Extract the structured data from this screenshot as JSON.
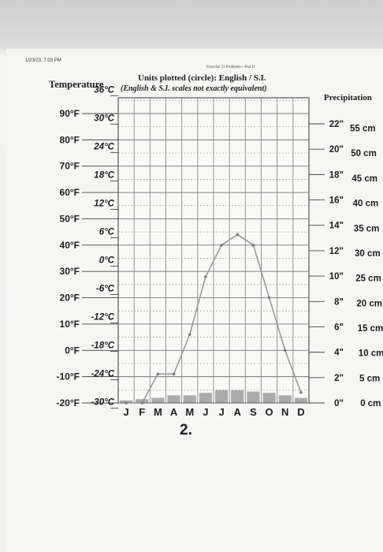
{
  "header": {
    "stamp": "1/23/23, 7:03 PM",
    "exercise": "Exercise 23 Problems—Part II",
    "units_plotted": "Units plotted (circle): English / S.I.",
    "temperature_label": "Temperature",
    "scales_note": "(English & S.I. scales not exactly equivalent)",
    "precipitation_label": "Precipitation",
    "figure_number": "2."
  },
  "chart_data": {
    "type": "line",
    "categories": [
      "J",
      "F",
      "M",
      "A",
      "M",
      "J",
      "J",
      "A",
      "S",
      "O",
      "N",
      "D"
    ],
    "y_left_f": {
      "ticks": [
        "90°F",
        "80°F",
        "70°F",
        "60°F",
        "50°F",
        "40°F",
        "30°F",
        "20°F",
        "10°F",
        "0°F",
        "-10°F",
        "-20°F"
      ],
      "values": [
        90,
        80,
        70,
        60,
        50,
        40,
        30,
        20,
        10,
        0,
        -10,
        -20
      ],
      "ylim": [
        -20,
        90
      ]
    },
    "y_left_c": {
      "ticks": [
        "36°C",
        "30°C",
        "24°C",
        "18°C",
        "12°C",
        "6°C",
        "0°C",
        "-6°C",
        "-12°C",
        "-18°C",
        "-24°C",
        "-30°C"
      ],
      "values": [
        36,
        30,
        24,
        18,
        12,
        6,
        0,
        -6,
        -12,
        -18,
        -24,
        -30
      ]
    },
    "y_right_in": {
      "ticks": [
        "22\"",
        "20\"",
        "18\"",
        "16\"",
        "14\"",
        "12\"",
        "10\"",
        "8\"",
        "6\"",
        "4\"",
        "2\"",
        "0\""
      ],
      "values": [
        22,
        20,
        18,
        16,
        14,
        12,
        10,
        8,
        6,
        4,
        2,
        0
      ]
    },
    "y_right_cm": {
      "ticks": [
        "55 cm",
        "50 cm",
        "45 cm",
        "40 cm",
        "35 cm",
        "30 cm",
        "25 cm",
        "20 cm",
        "15 cm",
        "10 cm",
        "5 cm",
        "0 cm"
      ],
      "values": [
        55,
        50,
        45,
        40,
        35,
        30,
        25,
        20,
        15,
        10,
        5,
        0
      ]
    },
    "temperature_f": [
      -20,
      -20,
      -9,
      -9,
      6,
      28,
      40,
      44,
      40,
      20,
      0,
      -16
    ],
    "precipitation_in": [
      0.2,
      0.3,
      0.4,
      0.6,
      0.6,
      0.8,
      1.0,
      1.0,
      0.9,
      0.8,
      0.6,
      0.4
    ],
    "grid": true,
    "colors": {
      "line": "#9a9a9a",
      "bar": "#6a6a6a",
      "grid": "#8a8a8a",
      "marker": "#7a7a7a"
    }
  }
}
